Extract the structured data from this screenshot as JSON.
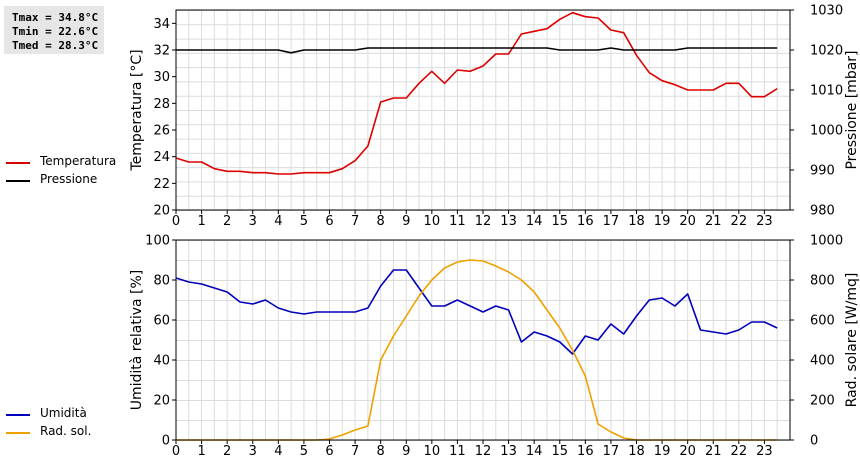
{
  "stats": {
    "tmax": "Tmax = 34.8°C",
    "tmin": "Tmin = 22.6°C",
    "tmed": "Tmed = 28.3°C"
  },
  "legends": {
    "top": [
      {
        "label": "Temperatura",
        "color": "#dd0000"
      },
      {
        "label": "Pressione",
        "color": "#000000"
      }
    ],
    "bottom": [
      {
        "label": "Umidità",
        "color": "#0000bb"
      },
      {
        "label": "Rad. sol.",
        "color": "#f0a000"
      }
    ]
  },
  "chart_data": [
    {
      "type": "line",
      "grid": true,
      "xlabel": "",
      "ylabel": "Temperatura [°C]",
      "y2label": "Pressione [mbar]",
      "xlim": [
        0,
        24
      ],
      "ylim": [
        20,
        35
      ],
      "y2lim": [
        980,
        1030
      ],
      "xticks": [
        "0",
        "1",
        "2",
        "3",
        "4",
        "5",
        "6",
        "7",
        "8",
        "9",
        "10",
        "11",
        "12",
        "13",
        "14",
        "15",
        "16",
        "17",
        "18",
        "19",
        "20",
        "21",
        "22",
        "23"
      ],
      "yticks": [
        "20",
        "22",
        "24",
        "26",
        "28",
        "30",
        "32",
        "34"
      ],
      "y2ticks": [
        "980",
        "990",
        "1000",
        "1010",
        "1020",
        "1030"
      ],
      "x": [
        0,
        0.5,
        1,
        1.5,
        2,
        2.5,
        3,
        3.5,
        4,
        4.5,
        5,
        5.5,
        6,
        6.5,
        7,
        7.5,
        8,
        8.5,
        9,
        9.5,
        10,
        10.5,
        11,
        11.5,
        12,
        12.5,
        13,
        13.5,
        14,
        14.5,
        15,
        15.5,
        16,
        16.5,
        17,
        17.5,
        18,
        18.5,
        19,
        19.5,
        20,
        20.5,
        21,
        21.5,
        22,
        22.5,
        23,
        23.5
      ],
      "series": [
        {
          "name": "Temperatura",
          "axis": "left",
          "color": "#dd0000",
          "values": [
            23.9,
            23.6,
            23.6,
            23.1,
            22.9,
            22.9,
            22.8,
            22.8,
            22.7,
            22.7,
            22.8,
            22.8,
            22.8,
            23.1,
            23.7,
            24.8,
            28.1,
            28.4,
            28.4,
            29.5,
            30.4,
            29.5,
            30.5,
            30.4,
            30.8,
            31.7,
            31.7,
            33.2,
            33.4,
            33.6,
            34.3,
            34.8,
            34.5,
            34.4,
            33.5,
            33.3,
            31.6,
            30.3,
            29.7,
            29.4,
            29.0,
            29.0,
            29.0,
            29.5,
            29.5,
            28.5,
            28.5,
            29.1
          ]
        },
        {
          "name": "Pressione",
          "axis": "right",
          "color": "#000000",
          "values": [
            1020,
            1020,
            1020,
            1020,
            1020,
            1020,
            1020,
            1020,
            1020,
            1019.3,
            1020,
            1020,
            1020,
            1020,
            1020,
            1020.5,
            1020.5,
            1020.5,
            1020.5,
            1020.5,
            1020.5,
            1020.5,
            1020.5,
            1020.5,
            1020.5,
            1020.5,
            1020.5,
            1020.5,
            1020.5,
            1020.5,
            1020,
            1020,
            1020,
            1020,
            1020.5,
            1020,
            1020,
            1020,
            1020,
            1020,
            1020.5,
            1020.5,
            1020.5,
            1020.5,
            1020.5,
            1020.5,
            1020.5,
            1020.5
          ]
        }
      ]
    },
    {
      "type": "line",
      "grid": true,
      "xlabel": "",
      "ylabel": "Umidità relativa [%]",
      "y2label": "Rad. solare [W/mq]",
      "xlim": [
        0,
        24
      ],
      "ylim": [
        0,
        100
      ],
      "y2lim": [
        0,
        1000
      ],
      "xticks": [
        "0",
        "1",
        "2",
        "3",
        "4",
        "5",
        "6",
        "7",
        "8",
        "9",
        "10",
        "11",
        "12",
        "13",
        "14",
        "15",
        "16",
        "17",
        "18",
        "19",
        "20",
        "21",
        "22",
        "23"
      ],
      "yticks": [
        "0",
        "20",
        "40",
        "60",
        "80",
        "100"
      ],
      "y2ticks": [
        "0",
        "200",
        "400",
        "600",
        "800",
        "1000"
      ],
      "x": [
        0,
        0.5,
        1,
        1.5,
        2,
        2.5,
        3,
        3.5,
        4,
        4.5,
        5,
        5.5,
        6,
        6.5,
        7,
        7.5,
        8,
        8.5,
        9,
        9.5,
        10,
        10.5,
        11,
        11.5,
        12,
        12.5,
        13,
        13.5,
        14,
        14.5,
        15,
        15.5,
        16,
        16.5,
        17,
        17.5,
        18,
        18.5,
        19,
        19.5,
        20,
        20.5,
        21,
        21.5,
        22,
        22.5,
        23,
        23.5
      ],
      "series": [
        {
          "name": "Umidità",
          "axis": "left",
          "color": "#0000bb",
          "values": [
            81,
            79,
            78,
            76,
            74,
            69,
            68,
            70,
            66,
            64,
            63,
            64,
            64,
            64,
            64,
            66,
            77,
            85,
            85,
            76,
            67,
            67,
            70,
            67,
            64,
            67,
            65,
            49,
            54,
            52,
            49,
            43,
            52,
            50,
            58,
            53,
            62,
            70,
            71,
            67,
            73,
            55,
            54,
            53,
            55,
            59,
            59,
            56
          ]
        },
        {
          "name": "Rad. sol.",
          "axis": "right",
          "color": "#f0a000",
          "values": [
            0,
            0,
            0,
            0,
            0,
            0,
            0,
            0,
            0,
            0,
            0,
            0,
            5,
            25,
            50,
            70,
            400,
            520,
            620,
            720,
            800,
            860,
            890,
            900,
            895,
            870,
            840,
            800,
            740,
            650,
            560,
            450,
            320,
            80,
            40,
            10,
            0,
            0,
            0,
            0,
            0,
            0,
            0,
            0,
            0,
            0,
            0,
            0
          ]
        }
      ]
    }
  ]
}
